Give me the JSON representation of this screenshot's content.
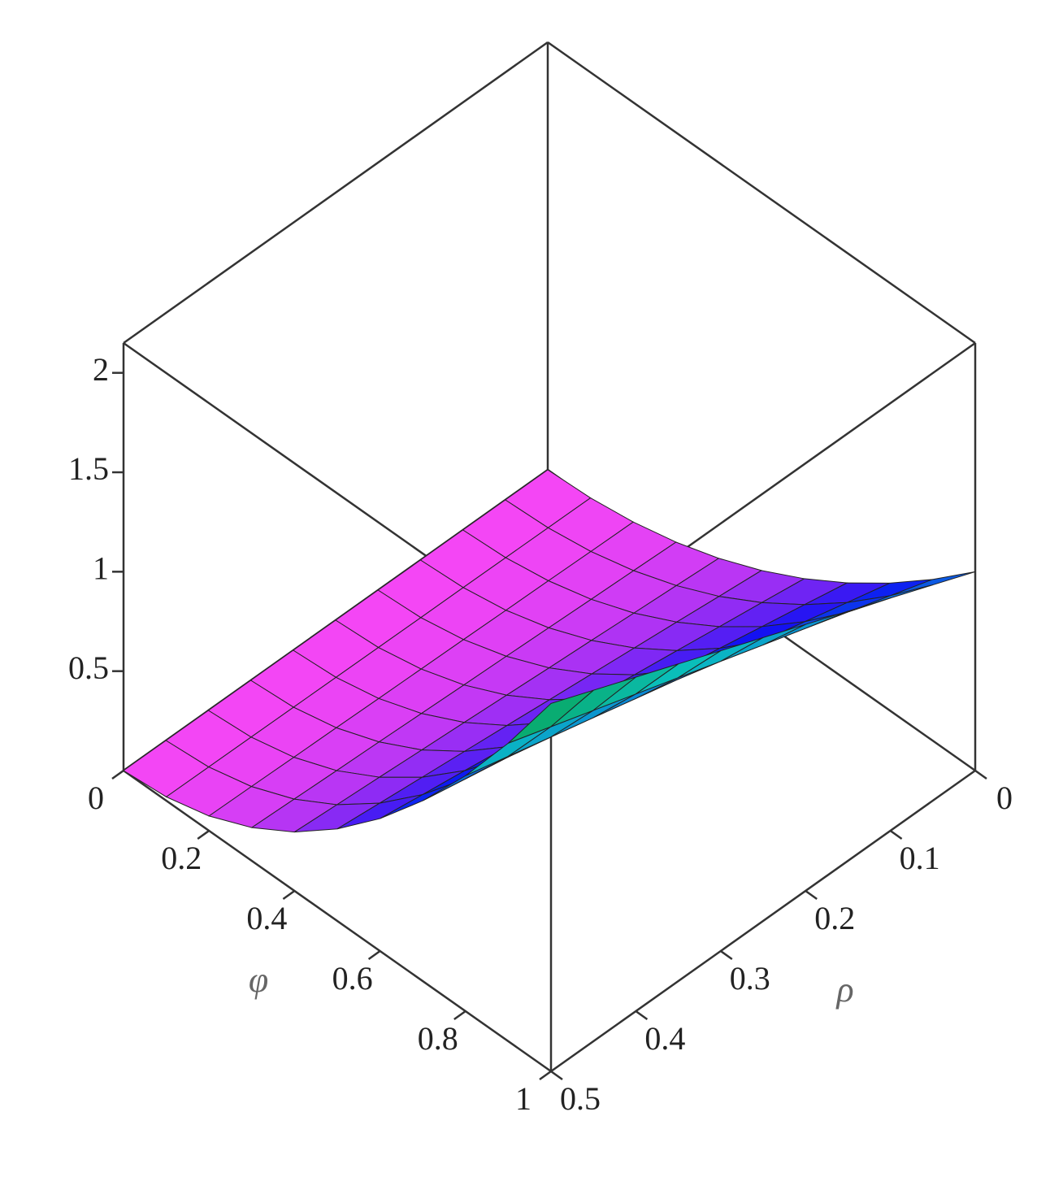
{
  "chart_data": {
    "type": "surface3d",
    "xlabel": "φ",
    "ylabel": "ρ",
    "x": [
      0,
      0.1,
      0.2,
      0.3,
      0.4,
      0.5,
      0.6,
      0.7,
      0.8,
      0.9,
      1
    ],
    "y": [
      0,
      0.05,
      0.1,
      0.15,
      0.2,
      0.25,
      0.3,
      0.35,
      0.4,
      0.45,
      0.5
    ],
    "z": [
      [
        0,
        0,
        0,
        0,
        0,
        0,
        0,
        0,
        0,
        0,
        0
      ],
      [
        0.01,
        0.011,
        0.012,
        0.013,
        0.013,
        0.014,
        0.015,
        0.016,
        0.017,
        0.018,
        0.019
      ],
      [
        0.04,
        0.043,
        0.047,
        0.05,
        0.054,
        0.057,
        0.06,
        0.064,
        0.067,
        0.071,
        0.074
      ],
      [
        0.09,
        0.098,
        0.105,
        0.113,
        0.121,
        0.128,
        0.136,
        0.144,
        0.151,
        0.159,
        0.167
      ],
      [
        0.16,
        0.174,
        0.187,
        0.201,
        0.214,
        0.228,
        0.242,
        0.255,
        0.269,
        0.282,
        0.296
      ],
      [
        0.25,
        0.271,
        0.293,
        0.314,
        0.335,
        0.356,
        0.378,
        0.399,
        0.42,
        0.441,
        0.463
      ],
      [
        0.36,
        0.391,
        0.421,
        0.452,
        0.482,
        0.513,
        0.544,
        0.574,
        0.605,
        0.635,
        0.666
      ],
      [
        0.49,
        0.532,
        0.573,
        0.615,
        0.657,
        0.698,
        0.74,
        0.782,
        0.823,
        0.865,
        0.907
      ],
      [
        0.64,
        0.694,
        0.749,
        0.803,
        0.858,
        0.912,
        0.966,
        1.021,
        1.075,
        1.13,
        1.184
      ],
      [
        0.81,
        0.879,
        0.948,
        1.017,
        1.085,
        1.154,
        1.223,
        1.292,
        1.361,
        1.43,
        1.499
      ],
      [
        1,
        1.085,
        1.17,
        1.255,
        1.34,
        1.425,
        1.51,
        1.595,
        1.68,
        1.765,
        1.85
      ]
    ],
    "xlim": [
      0,
      1
    ],
    "ylim": [
      0,
      0.5
    ],
    "zlim": [
      0,
      2.15
    ],
    "xticks": [
      0,
      0.2,
      0.4,
      0.6,
      0.8,
      1
    ],
    "yticks": [
      0,
      0.1,
      0.2,
      0.3,
      0.4,
      0.5
    ],
    "zticks": [
      0.5,
      1,
      1.5,
      2
    ]
  }
}
